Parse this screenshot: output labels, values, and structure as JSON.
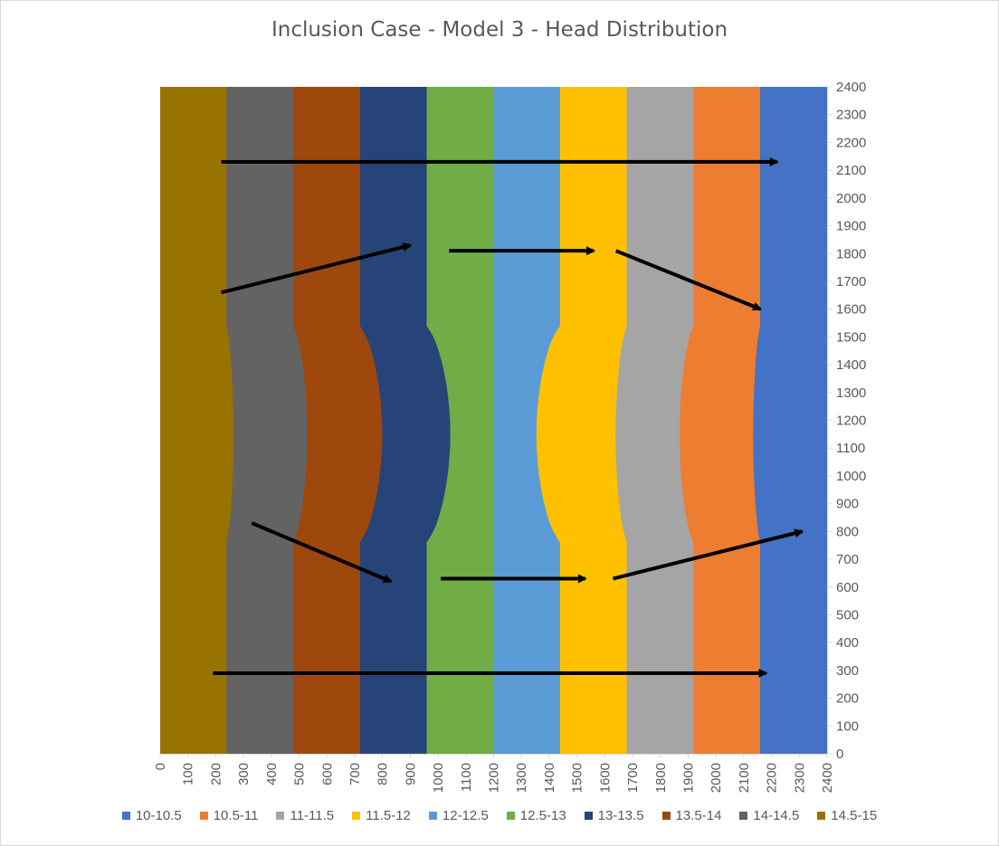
{
  "chart_data": {
    "type": "heatmap",
    "title": "Inclusion Case - Model 3 - Head Distribution",
    "xlabel": "",
    "ylabel": "",
    "xlim": [
      0,
      2400
    ],
    "ylim": [
      0,
      2400
    ],
    "x_ticks": [
      "0",
      "100",
      "200",
      "300",
      "400",
      "500",
      "600",
      "700",
      "800",
      "900",
      "1000",
      "1100",
      "1200",
      "1300",
      "1400",
      "1500",
      "1600",
      "1700",
      "1800",
      "1900",
      "2000",
      "2100",
      "2200",
      "2300",
      "2400"
    ],
    "y_ticks": [
      "0",
      "100",
      "200",
      "300",
      "400",
      "500",
      "600",
      "700",
      "800",
      "900",
      "1000",
      "1100",
      "1200",
      "1300",
      "1400",
      "1500",
      "1600",
      "1700",
      "1800",
      "1900",
      "2000",
      "2100",
      "2200",
      "2300",
      "2400"
    ],
    "legend": [
      {
        "label": "10-10.5",
        "color": "#4472c4"
      },
      {
        "label": "10.5-11",
        "color": "#ed7d31"
      },
      {
        "label": "11-11.5",
        "color": "#a5a5a5"
      },
      {
        "label": "11.5-12",
        "color": "#ffc000"
      },
      {
        "label": "12-12.5",
        "color": "#5b9bd5"
      },
      {
        "label": "12.5-13",
        "color": "#70ad47"
      },
      {
        "label": "13-13.5",
        "color": "#264478"
      },
      {
        "label": "13.5-14",
        "color": "#9e480e"
      },
      {
        "label": "14-14.5",
        "color": "#636363"
      },
      {
        "label": "14.5-15",
        "color": "#997300"
      }
    ],
    "bands_left_to_right": [
      {
        "range": "14.5-15",
        "x_start": 0,
        "x_end": 240
      },
      {
        "range": "14-14.5",
        "x_start": 240,
        "x_end": 480
      },
      {
        "range": "13.5-14",
        "x_start": 480,
        "x_end": 720
      },
      {
        "range": "13-13.5",
        "x_start": 720,
        "x_end": 960
      },
      {
        "range": "12.5-13",
        "x_start": 960,
        "x_end": 1200
      },
      {
        "range": "12-12.5",
        "x_start": 1200,
        "x_end": 1440
      },
      {
        "range": "11.5-12",
        "x_start": 1440,
        "x_end": 1680
      },
      {
        "range": "11-11.5",
        "x_start": 1680,
        "x_end": 1920
      },
      {
        "range": "10.5-11",
        "x_start": 1920,
        "x_end": 2160
      },
      {
        "range": "10-10.5",
        "x_start": 2160,
        "x_end": 2400
      }
    ],
    "contour_bulges": [
      {
        "boundary_x": 240,
        "dx_center": 25
      },
      {
        "boundary_x": 480,
        "dx_center": 50
      },
      {
        "boundary_x": 720,
        "dx_center": 80
      },
      {
        "boundary_x": 960,
        "dx_center": 85
      },
      {
        "boundary_x": 1440,
        "dx_center": -85
      },
      {
        "boundary_x": 1680,
        "dx_center": -40
      },
      {
        "boundary_x": 1920,
        "dx_center": -50
      },
      {
        "boundary_x": 2160,
        "dx_center": -25
      }
    ],
    "arrows": [
      {
        "from": [
          220,
          2130
        ],
        "to": [
          2220,
          2130
        ]
      },
      {
        "from": [
          220,
          1660
        ],
        "to": [
          900,
          1830
        ]
      },
      {
        "from": [
          1040,
          1810
        ],
        "to": [
          1560,
          1810
        ]
      },
      {
        "from": [
          1640,
          1810
        ],
        "to": [
          2160,
          1600
        ]
      },
      {
        "from": [
          330,
          830
        ],
        "to": [
          830,
          620
        ]
      },
      {
        "from": [
          1010,
          630
        ],
        "to": [
          1530,
          630
        ]
      },
      {
        "from": [
          1630,
          630
        ],
        "to": [
          2310,
          800
        ]
      },
      {
        "from": [
          190,
          290
        ],
        "to": [
          2180,
          290
        ]
      }
    ],
    "grid": false,
    "legend_position": "bottom"
  }
}
